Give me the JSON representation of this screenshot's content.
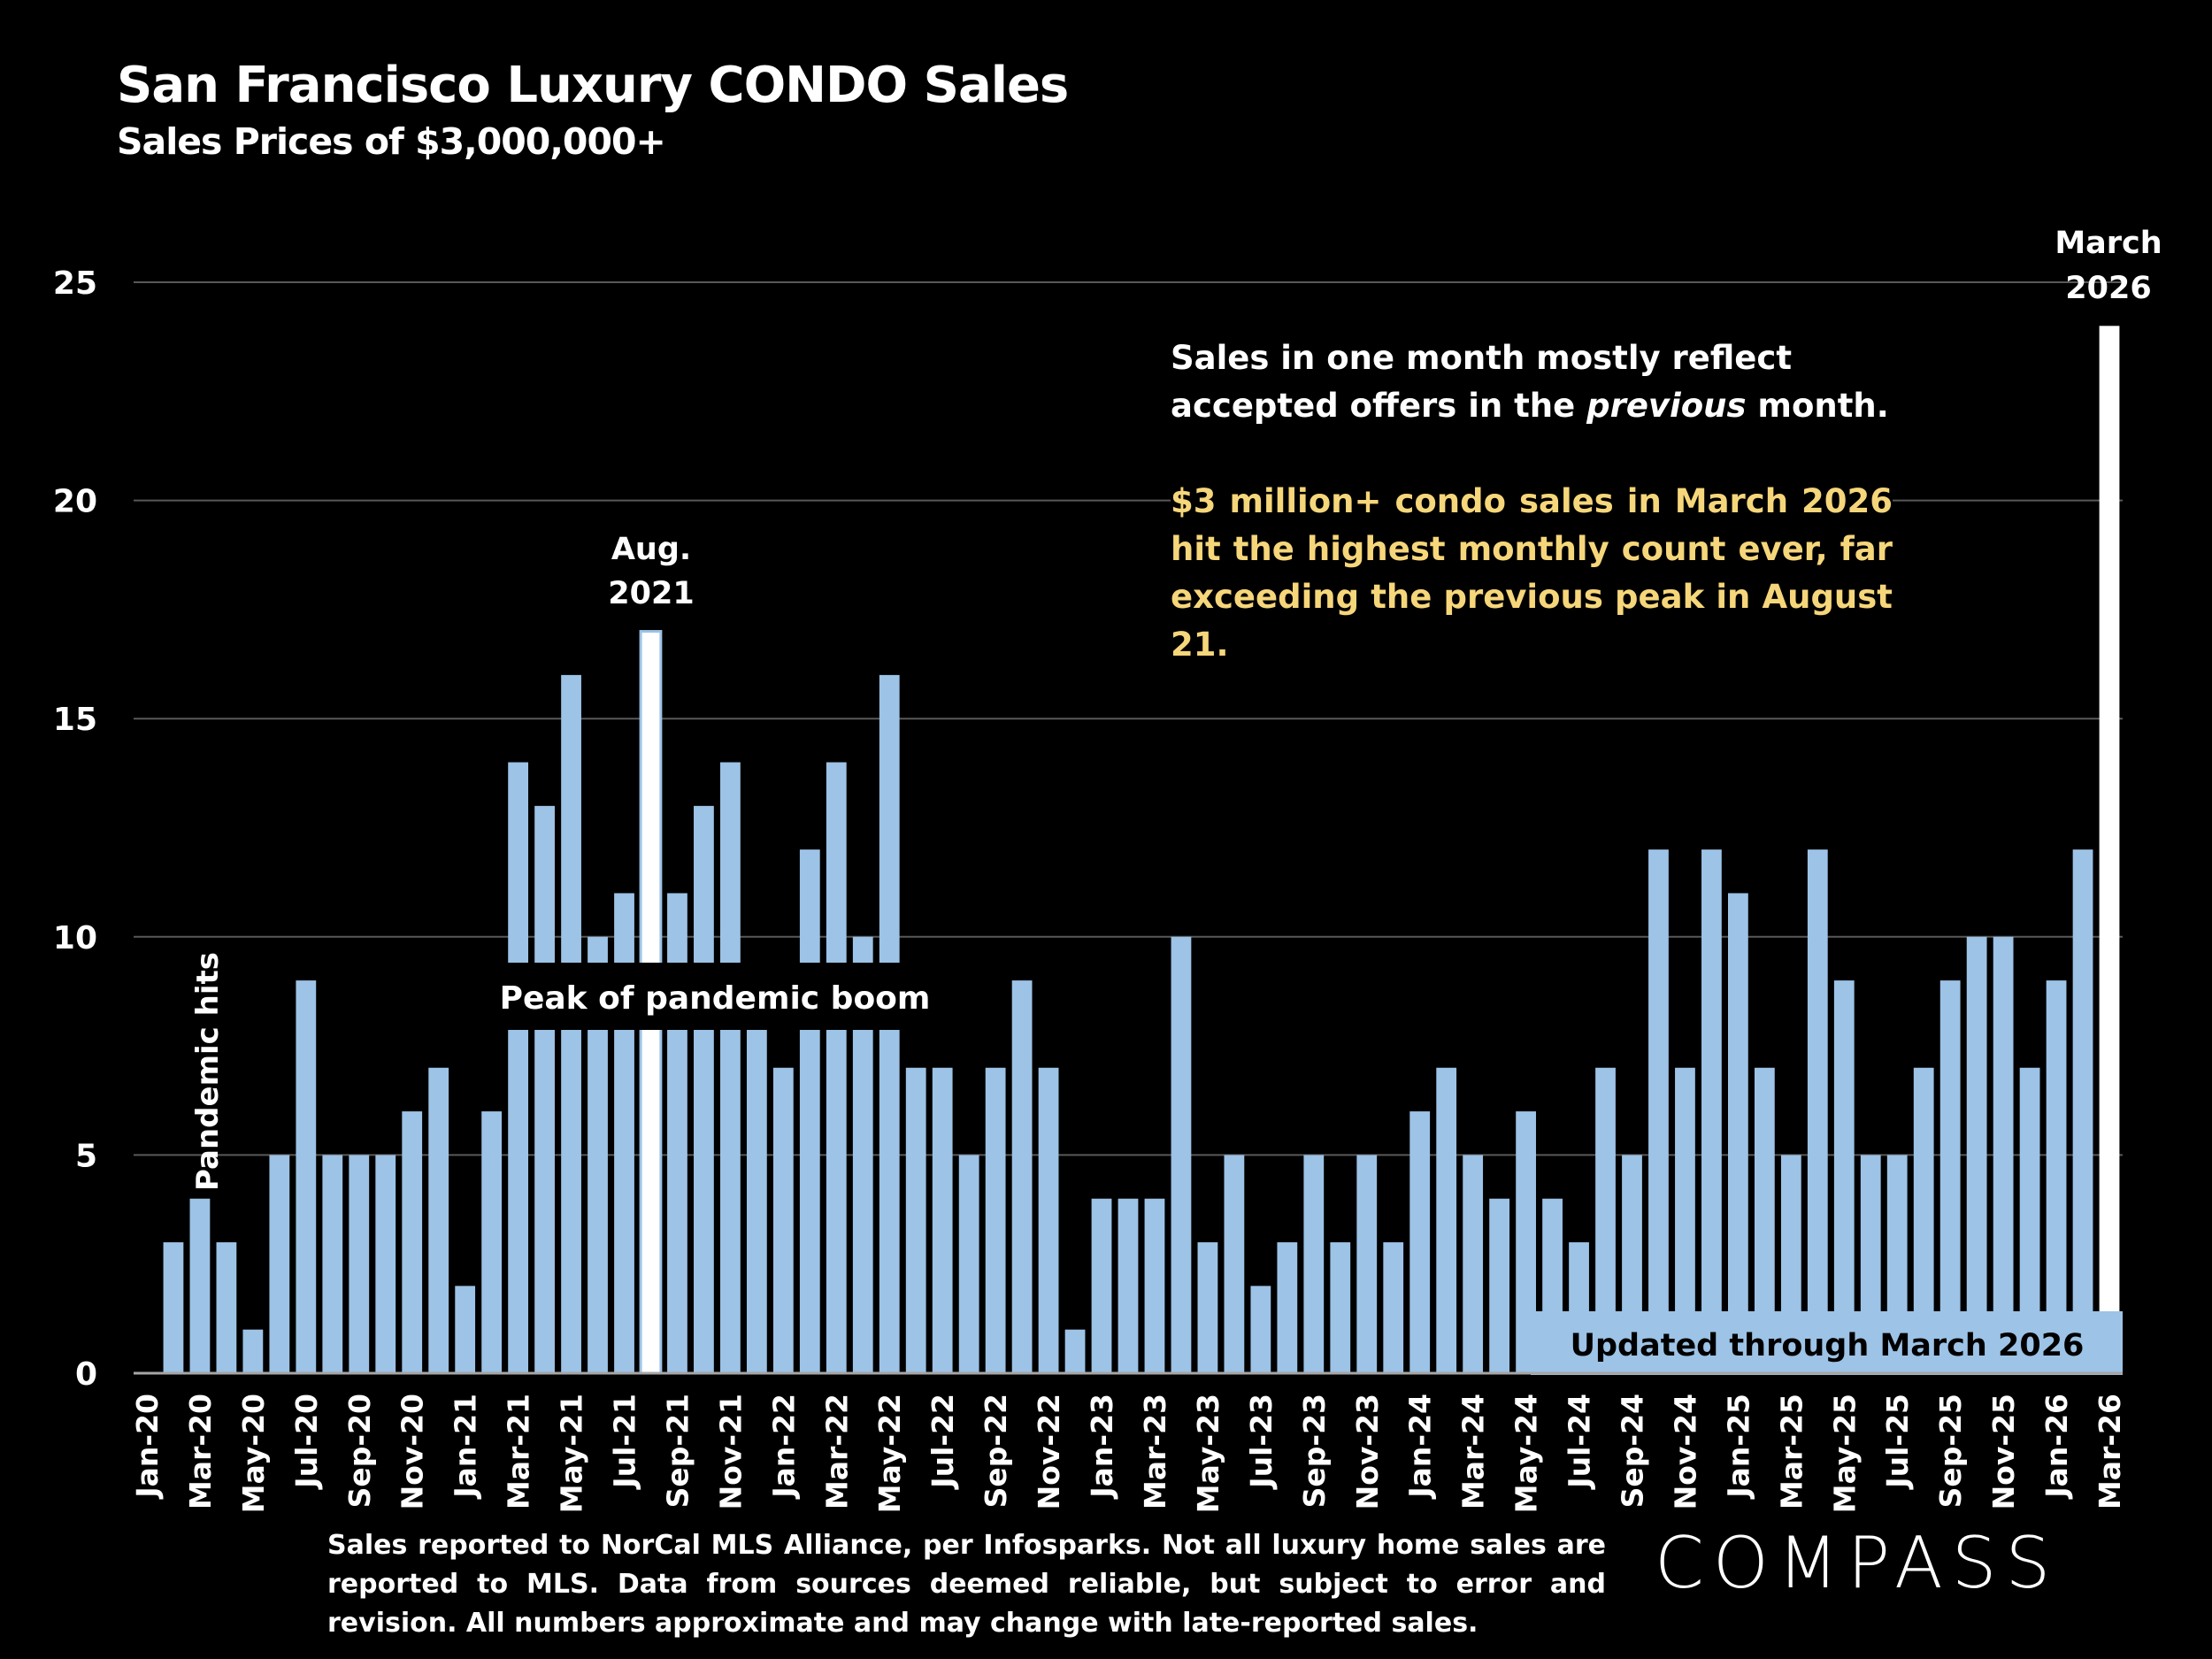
{
  "header": {
    "title": "San Francisco Luxury CONDO Sales",
    "subtitle": "Sales Prices of $3,000,000+"
  },
  "annotations": {
    "note_part1": "Sales in one month mostly reflect accepted offers in the ",
    "note_italic": "previous",
    "note_part2": " month.",
    "highlight": "$3 million+ condo sales in March 2026 hit the highest monthly count ever, far exceeding the previous peak in August 21.",
    "aug_label_1": "Aug.",
    "aug_label_2": "2021",
    "mar_label_1": "March",
    "mar_label_2": "2026",
    "pandemic": "Pandemic hits",
    "peak": "Peak of pandemic boom",
    "updated": "Updated through March 2026"
  },
  "footer": {
    "text": "Sales reported to NorCal MLS Alliance, per  Infosparks. Not all luxury home sales are reported to MLS. Data from sources deemed reliable, but subject to error and revision. All numbers approximate and may change with late-reported sales.",
    "logo": "COMPASS"
  },
  "colors": {
    "background": "#000000",
    "bar": "#9dc3e6",
    "highlight_bar": "#ffffff",
    "highlight_text": "#f6d67a",
    "grid": "#595959"
  },
  "chart_data": {
    "type": "bar",
    "title": "San Francisco Luxury CONDO Sales",
    "subtitle": "Sales Prices of $3,000,000+",
    "ylim": [
      0,
      25
    ],
    "yticks": [
      0,
      5,
      10,
      15,
      20,
      25
    ],
    "grid": true,
    "highlighted": [
      "Aug-21",
      "Mar-26"
    ],
    "categories": [
      "Jan-20",
      "Feb-20",
      "Mar-20",
      "Apr-20",
      "May-20",
      "Jun-20",
      "Jul-20",
      "Aug-20",
      "Sep-20",
      "Oct-20",
      "Nov-20",
      "Dec-20",
      "Jan-21",
      "Feb-21",
      "Mar-21",
      "Apr-21",
      "May-21",
      "Jun-21",
      "Jul-21",
      "Aug-21",
      "Sep-21",
      "Oct-21",
      "Nov-21",
      "Dec-21",
      "Jan-22",
      "Feb-22",
      "Mar-22",
      "Apr-22",
      "May-22",
      "Jun-22",
      "Jul-22",
      "Aug-22",
      "Sep-22",
      "Oct-22",
      "Nov-22",
      "Dec-22",
      "Jan-23",
      "Feb-23",
      "Mar-23",
      "Apr-23",
      "May-23",
      "Jun-23",
      "Jul-23",
      "Aug-23",
      "Sep-23",
      "Oct-23",
      "Nov-23",
      "Dec-23",
      "Jan-24",
      "Feb-24",
      "Mar-24",
      "Apr-24",
      "May-24",
      "Jun-24",
      "Jul-24",
      "Aug-24",
      "Sep-24",
      "Oct-24",
      "Nov-24",
      "Dec-24",
      "Jan-25",
      "Feb-25",
      "Mar-25",
      "Apr-25",
      "May-25",
      "Jun-25",
      "Jul-25",
      "Aug-25",
      "Sep-25",
      "Oct-25",
      "Nov-25",
      "Dec-25",
      "Jan-26",
      "Feb-26",
      "Mar-26"
    ],
    "values": [
      0,
      3,
      4,
      3,
      1,
      5,
      9,
      5,
      5,
      5,
      6,
      7,
      2,
      6,
      14,
      13,
      16,
      10,
      11,
      17,
      11,
      13,
      14,
      9,
      7,
      12,
      14,
      10,
      16,
      7,
      7,
      5,
      7,
      9,
      7,
      1,
      4,
      4,
      4,
      10,
      3,
      5,
      2,
      3,
      5,
      3,
      5,
      3,
      6,
      7,
      5,
      4,
      6,
      4,
      3,
      7,
      5,
      12,
      7,
      12,
      11,
      7,
      5,
      12,
      9,
      5,
      5,
      7,
      9,
      10,
      10,
      7,
      9,
      12,
      24
    ]
  }
}
